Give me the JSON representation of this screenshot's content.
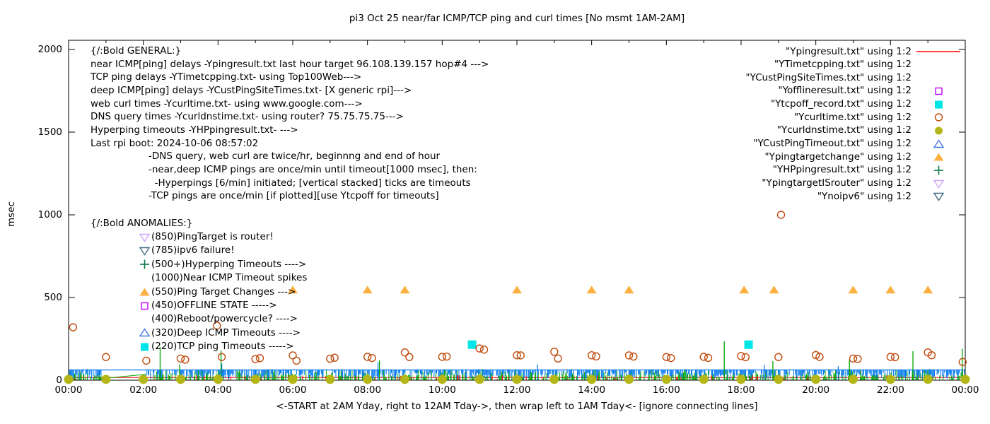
{
  "title": "pi3 Oct 25  near/far ICMP/TCP ping and curl times [No msmt 1AM-2AM]",
  "y_axis": {
    "label": "msec",
    "ticks": [
      0,
      500,
      1000,
      1500,
      2000
    ],
    "min": 0,
    "max": 2000
  },
  "x_axis": {
    "label": "<-START at 2AM Yday, right to 12AM Tday->, then wrap left to 1AM Tday<- [ignore connecting lines]",
    "tick_labels": [
      "00:00",
      "02:00",
      "04:00",
      "06:00",
      "08:00",
      "10:00",
      "12:00",
      "14:00",
      "16:00",
      "18:00",
      "20:00",
      "22:00",
      "00:00"
    ],
    "hours_span": 24
  },
  "annotations": {
    "general": {
      "header": "{/:Bold GENERAL:}",
      "lines": [
        "near ICMP[ping] delays -Ypingresult.txt last hour target 96.108.139.157 hop#4 --->",
        "TCP ping delays -YTimetcpping.txt- using Top100Web--->",
        "deep ICMP[ping] delays -YCustPingSiteTimes.txt- [X generic rpi]--->",
        "web curl times -Ycurltime.txt- using www.google.com--->",
        "DNS query times -Ycurldnstime.txt- using router? 75.75.75.75--->",
        "Hyperping timeouts -YHPpingresult.txt- --->",
        "Last rpi boot: 2024-10-06 08:57:02"
      ],
      "notes": [
        "-DNS query, web curl are twice/hr, beginnng and end of hour",
        "-near,deep ICMP pings are once/min until timeout[1000 msec], then:",
        "  -Hyperpings [6/min] initiated; [vertical stacked] ticks are timeouts",
        "-TCP pings are once/min [if plotted][use Ytcpoff for timeouts]"
      ]
    },
    "anomalies": {
      "header": "{/:Bold ANOMALIES:}",
      "items": [
        {
          "marker": "triangle-down-open",
          "color": "#cfa3f7",
          "text": "(850)PingTarget is router!"
        },
        {
          "marker": "triangle-down-open",
          "color": "#3f6a82",
          "text": "(785)ipv6 failure!"
        },
        {
          "marker": "plus",
          "color": "#0e7a47",
          "text": "(500+)Hyperping Timeouts ---->"
        },
        {
          "marker": "none",
          "color": "",
          "text": "(1000)Near ICMP Timeout spikes"
        },
        {
          "marker": "triangle-up-filled",
          "color": "#fbb040",
          "text": "(550)Ping Target Changes --->"
        },
        {
          "marker": "square-open",
          "color": "#bf00ff",
          "text": "(450)OFFLINE STATE ----->"
        },
        {
          "marker": "none",
          "color": "",
          "text": "(400)Reboot/powercycle? ---->"
        },
        {
          "marker": "triangle-up-open",
          "color": "#4878e0",
          "text": "(320)Deep ICMP Timeouts ---->"
        },
        {
          "marker": "square-filled",
          "color": "#00e5e5",
          "text": "(220)TCP ping Timeouts ----->"
        }
      ]
    }
  },
  "chart_data": {
    "type": "line",
    "x_unit": "hours",
    "x_range": [
      0,
      24
    ],
    "y_range": [
      0,
      2000
    ],
    "grid": false,
    "legend_position": "top-right",
    "noise": {
      "seed": 42,
      "density": 1050,
      "band_top": 70,
      "gap_hours": [
        0.87,
        2.05
      ]
    },
    "series": [
      {
        "name": "\"Ypingresult.txt\" using 1:2",
        "style": "line",
        "color": "#ff0000",
        "points": [
          [
            0,
            16
          ],
          [
            24,
            16
          ]
        ]
      },
      {
        "name": "\"YTimetcpping.txt\" using 1:2",
        "style": "noisy-line",
        "color": "#00a400",
        "bridge": [
          [
            0.9,
            10
          ],
          [
            2.07,
            35
          ]
        ],
        "spikes": [
          [
            2.45,
            200
          ],
          [
            2.97,
            95
          ],
          [
            4.08,
            180
          ],
          [
            8.32,
            120
          ],
          [
            17.55,
            235
          ],
          [
            18.85,
            115
          ],
          [
            20.9,
            125
          ],
          [
            22.6,
            175
          ],
          [
            23.92,
            190
          ]
        ]
      },
      {
        "name": "\"YCustPingSiteTimes.txt\" using 1:2",
        "style": "noisy-line",
        "color": "#0076f2",
        "level": 62,
        "spikes": [
          [
            4.1,
            100
          ],
          [
            8.28,
            108
          ],
          [
            12.55,
            95
          ],
          [
            18.62,
            92
          ],
          [
            20.6,
            85
          ]
        ]
      },
      {
        "name": "\"Yofflineresult.txt\" using 1:2",
        "style": "points",
        "marker": "square-open",
        "color": "#bf00ff",
        "points": []
      },
      {
        "name": "\"Ytcpoff_record.txt\" using 1:2",
        "style": "points",
        "marker": "square-filled",
        "color": "#00e5e5",
        "points": [
          [
            10.8,
            215
          ],
          [
            18.2,
            215
          ]
        ]
      },
      {
        "name": "\"Ycurltime.txt\" using 1:2",
        "style": "points",
        "marker": "circle-open",
        "color": "#c04a0c",
        "points": [
          [
            0.12,
            320
          ],
          [
            1.0,
            140
          ],
          [
            2.08,
            118
          ],
          [
            3.0,
            131
          ],
          [
            3.12,
            124
          ],
          [
            3.97,
            330
          ],
          [
            4.1,
            140
          ],
          [
            5.0,
            128
          ],
          [
            5.12,
            133
          ],
          [
            6.0,
            150
          ],
          [
            6.1,
            118
          ],
          [
            7.0,
            130
          ],
          [
            7.12,
            136
          ],
          [
            8.0,
            141
          ],
          [
            8.12,
            134
          ],
          [
            9.0,
            168
          ],
          [
            9.12,
            140
          ],
          [
            10.0,
            141
          ],
          [
            10.12,
            143
          ],
          [
            11.0,
            192
          ],
          [
            11.12,
            185
          ],
          [
            12.0,
            151
          ],
          [
            12.1,
            150
          ],
          [
            13.0,
            172
          ],
          [
            13.1,
            131
          ],
          [
            14.0,
            151
          ],
          [
            14.12,
            144
          ],
          [
            15.0,
            150
          ],
          [
            15.12,
            143
          ],
          [
            16.0,
            140
          ],
          [
            16.12,
            134
          ],
          [
            17.0,
            141
          ],
          [
            17.12,
            135
          ],
          [
            18.0,
            146
          ],
          [
            18.12,
            139
          ],
          [
            19.0,
            140
          ],
          [
            19.07,
            1000
          ],
          [
            20.0,
            152
          ],
          [
            20.1,
            141
          ],
          [
            21.0,
            131
          ],
          [
            21.12,
            129
          ],
          [
            22.0,
            141
          ],
          [
            22.12,
            139
          ],
          [
            23.0,
            168
          ],
          [
            23.1,
            151
          ],
          [
            23.93,
            110
          ]
        ]
      },
      {
        "name": "\"Ycurldnstime.txt\" using 1:2",
        "style": "points",
        "marker": "circle-filled",
        "color": "#b3b616",
        "points": [
          [
            0,
            5
          ],
          [
            1,
            5
          ],
          [
            2,
            5
          ],
          [
            3,
            5
          ],
          [
            4,
            5
          ],
          [
            5,
            5
          ],
          [
            6,
            5
          ],
          [
            7,
            5
          ],
          [
            8,
            5
          ],
          [
            9,
            5
          ],
          [
            10,
            5
          ],
          [
            11,
            5
          ],
          [
            12,
            5
          ],
          [
            13,
            5
          ],
          [
            14,
            5
          ],
          [
            15,
            5
          ],
          [
            16,
            5
          ],
          [
            17,
            5
          ],
          [
            18,
            5
          ],
          [
            19,
            5
          ],
          [
            20,
            5
          ],
          [
            21,
            5
          ],
          [
            22,
            5
          ],
          [
            23,
            5
          ],
          [
            24,
            5
          ]
        ]
      },
      {
        "name": "\"YCustPingTimeout.txt\" using 1:2",
        "style": "points",
        "marker": "triangle-up-open",
        "color": "#4878e0",
        "points": []
      },
      {
        "name": "\"Ypingtargetchange\" using 1:2",
        "style": "points",
        "marker": "triangle-up-filled",
        "color": "#fbb040",
        "points": [
          [
            6,
            548
          ],
          [
            8,
            548
          ],
          [
            9,
            548
          ],
          [
            12,
            548
          ],
          [
            14,
            548
          ],
          [
            15,
            548
          ],
          [
            18.08,
            548
          ],
          [
            18.88,
            548
          ],
          [
            21,
            548
          ],
          [
            22,
            548
          ],
          [
            23,
            548
          ]
        ]
      },
      {
        "name": "\"YHPpingresult.txt\" using 1:2",
        "style": "points",
        "marker": "plus",
        "color": "#0e7a47",
        "points": []
      },
      {
        "name": "\"YpingtargetISrouter\" using 1:2",
        "style": "points",
        "marker": "triangle-down-open",
        "color": "#cfa3f7",
        "points": []
      },
      {
        "name": "\"Ynoipv6\" using 1:2",
        "style": "points",
        "marker": "triangle-down-open",
        "color": "#3f6a82",
        "points": []
      }
    ]
  }
}
